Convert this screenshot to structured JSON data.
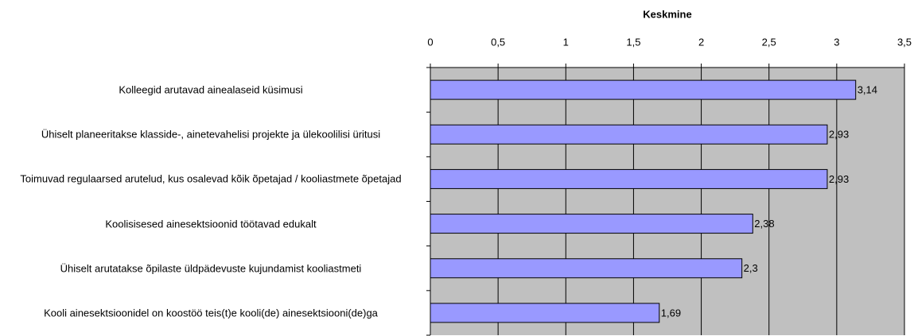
{
  "chart_data": {
    "type": "bar",
    "orientation": "horizontal",
    "title": "Keskmine",
    "categories": [
      "Kolleegid arutavad ainealaseid küsimusi",
      "Ühiselt planeeritakse klasside-, ainetevahelisi projekte ja ülekoolilisi üritusi",
      "Toimuvad regulaarsed arutelud, kus osalevad kõik õpetajad / kooliastmete õpetajad",
      "Koolisisesed ainesektsioonid töötavad edukalt",
      "Ühiselt arutatakse õpilaste üldpädevuste kujundamist kooliastmeti",
      "Kooli ainesektsioonidel on koostöö teis(t)e kooli(de) ainesektsiooni(de)ga"
    ],
    "values": [
      3.14,
      2.93,
      2.93,
      2.38,
      2.3,
      1.69
    ],
    "value_labels": [
      "3,14",
      "2,93",
      "2,93",
      "2,38",
      "2,3",
      "1,69"
    ],
    "color": "#9999ff",
    "xlim": [
      0,
      3.5
    ],
    "xticks": [
      0,
      {
        "value": 0.5,
        "label": "0,5"
      },
      1,
      {
        "value": 1.5,
        "label": "1,5"
      },
      2,
      {
        "value": 2.5,
        "label": "2,5"
      },
      3,
      {
        "value": 3.5,
        "label": "3,5"
      }
    ],
    "grid": true
  }
}
